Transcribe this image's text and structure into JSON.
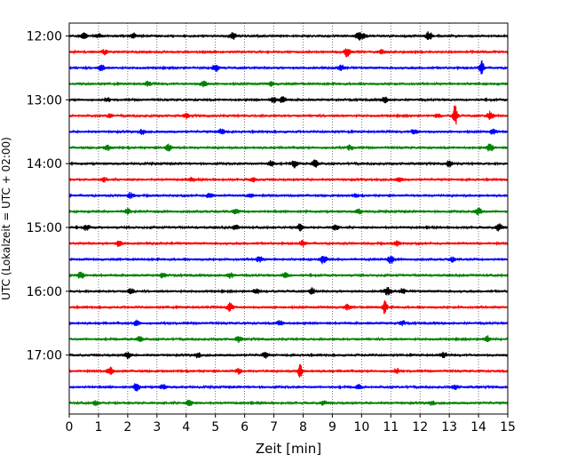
{
  "chart_data": {
    "type": "line",
    "title": "",
    "xlabel": "Zeit  [min]",
    "ylabel": "UTC (Lokalzeit = UTC + 02:00)",
    "xlim": [
      0,
      15
    ],
    "x_ticks": [
      "0",
      "1",
      "2",
      "3",
      "4",
      "5",
      "6",
      "7",
      "8",
      "9",
      "10",
      "11",
      "12",
      "13",
      "14",
      "15"
    ],
    "y_ticks": [
      {
        "label": "12:00",
        "trace": 0
      },
      {
        "label": "13:00",
        "trace": 4
      },
      {
        "label": "14:00",
        "trace": 8
      },
      {
        "label": "15:00",
        "trace": 12
      },
      {
        "label": "16:00",
        "trace": 16
      },
      {
        "label": "17:00",
        "trace": 20
      }
    ],
    "grid": "vertical dotted",
    "legend": "none",
    "trace_interval_minutes": 15,
    "trace_colors": [
      "#000000",
      "#ff0000",
      "#0000ff",
      "#008000"
    ],
    "traces": [
      {
        "start": "12:00",
        "events": [
          [
            0.5,
            0.6
          ],
          [
            1.0,
            0.4
          ],
          [
            2.2,
            0.5
          ],
          [
            5.6,
            0.7
          ],
          [
            9.9,
            0.8
          ],
          [
            10.1,
            0.6
          ],
          [
            12.3,
            0.9
          ]
        ]
      },
      {
        "start": "12:15",
        "events": [
          [
            1.2,
            0.5
          ],
          [
            9.5,
            1.0
          ],
          [
            10.7,
            0.5
          ]
        ]
      },
      {
        "start": "12:30",
        "events": [
          [
            1.1,
            0.5
          ],
          [
            5.0,
            0.8
          ],
          [
            9.3,
            0.6
          ],
          [
            14.1,
            2.0
          ]
        ]
      },
      {
        "start": "12:45",
        "events": [
          [
            2.7,
            0.5
          ],
          [
            4.6,
            0.6
          ],
          [
            6.9,
            0.4
          ]
        ]
      },
      {
        "start": "13:00",
        "events": [
          [
            1.3,
            0.4
          ],
          [
            7.0,
            0.7
          ],
          [
            7.3,
            0.6
          ],
          [
            10.8,
            0.5
          ]
        ]
      },
      {
        "start": "13:15",
        "events": [
          [
            1.4,
            0.4
          ],
          [
            4.0,
            0.4
          ],
          [
            12.6,
            0.4
          ],
          [
            13.2,
            2.5
          ],
          [
            14.4,
            0.9
          ]
        ]
      },
      {
        "start": "13:30",
        "events": [
          [
            2.5,
            0.5
          ],
          [
            5.2,
            0.6
          ],
          [
            11.8,
            0.5
          ],
          [
            14.5,
            0.5
          ]
        ]
      },
      {
        "start": "13:45",
        "events": [
          [
            1.3,
            0.5
          ],
          [
            3.4,
            0.7
          ],
          [
            9.6,
            0.5
          ],
          [
            14.4,
            0.8
          ]
        ]
      },
      {
        "start": "14:00",
        "events": [
          [
            6.9,
            0.6
          ],
          [
            7.7,
            0.8
          ],
          [
            8.4,
            0.9
          ],
          [
            13.0,
            0.7
          ]
        ]
      },
      {
        "start": "14:15",
        "events": [
          [
            1.2,
            0.4
          ],
          [
            4.2,
            0.5
          ],
          [
            6.3,
            0.4
          ],
          [
            11.3,
            0.4
          ]
        ]
      },
      {
        "start": "14:30",
        "events": [
          [
            2.1,
            0.6
          ],
          [
            4.8,
            0.5
          ],
          [
            6.2,
            0.4
          ],
          [
            9.8,
            0.4
          ]
        ]
      },
      {
        "start": "14:45",
        "events": [
          [
            2.0,
            0.6
          ],
          [
            5.7,
            0.5
          ],
          [
            9.9,
            0.5
          ],
          [
            14.0,
            0.7
          ]
        ]
      },
      {
        "start": "15:00",
        "events": [
          [
            0.6,
            0.6
          ],
          [
            5.7,
            0.5
          ],
          [
            7.9,
            0.7
          ],
          [
            9.1,
            0.5
          ],
          [
            14.7,
            0.8
          ]
        ]
      },
      {
        "start": "15:15",
        "events": [
          [
            1.7,
            0.5
          ],
          [
            8.0,
            0.6
          ],
          [
            11.2,
            0.5
          ]
        ]
      },
      {
        "start": "15:30",
        "events": [
          [
            6.5,
            0.6
          ],
          [
            8.7,
            0.9
          ],
          [
            11.0,
            0.8
          ],
          [
            13.1,
            0.5
          ]
        ]
      },
      {
        "start": "15:45",
        "events": [
          [
            0.4,
            0.7
          ],
          [
            3.2,
            0.5
          ],
          [
            5.5,
            0.6
          ],
          [
            7.4,
            0.5
          ]
        ]
      },
      {
        "start": "16:00",
        "events": [
          [
            2.1,
            0.5
          ],
          [
            6.4,
            0.6
          ],
          [
            8.3,
            0.7
          ],
          [
            10.9,
            0.9
          ],
          [
            11.4,
            0.5
          ]
        ]
      },
      {
        "start": "16:15",
        "events": [
          [
            5.5,
            1.0
          ],
          [
            9.5,
            0.5
          ],
          [
            10.8,
            1.8
          ]
        ]
      },
      {
        "start": "16:30",
        "events": [
          [
            2.3,
            0.6
          ],
          [
            7.2,
            0.5
          ],
          [
            11.4,
            0.4
          ]
        ]
      },
      {
        "start": "16:45",
        "events": [
          [
            2.4,
            0.6
          ],
          [
            5.8,
            0.6
          ],
          [
            14.3,
            0.7
          ]
        ]
      },
      {
        "start": "17:00",
        "events": [
          [
            2.0,
            0.7
          ],
          [
            4.4,
            0.5
          ],
          [
            6.7,
            0.5
          ],
          [
            12.8,
            0.6
          ]
        ]
      },
      {
        "start": "17:15",
        "events": [
          [
            1.4,
            0.8
          ],
          [
            5.8,
            0.5
          ],
          [
            7.9,
            1.6
          ],
          [
            11.2,
            0.5
          ]
        ]
      },
      {
        "start": "17:30",
        "events": [
          [
            2.3,
            0.8
          ],
          [
            3.2,
            0.5
          ],
          [
            9.9,
            0.4
          ],
          [
            13.2,
            0.4
          ]
        ]
      },
      {
        "start": "17:45",
        "events": [
          [
            0.9,
            0.5
          ],
          [
            4.1,
            0.5
          ],
          [
            8.7,
            0.4
          ],
          [
            12.4,
            0.4
          ]
        ]
      }
    ]
  }
}
